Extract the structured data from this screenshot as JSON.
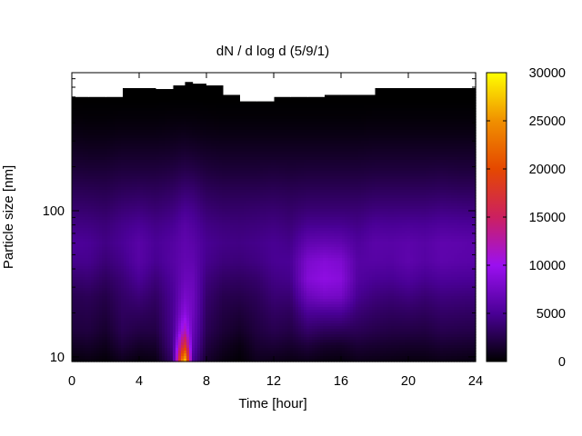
{
  "chart_data": {
    "type": "heatmap",
    "title": "dN / d log d (5/9/1)",
    "xlabel": "Time [hour]",
    "ylabel": "Particle size [nm]",
    "xlim": [
      0,
      24
    ],
    "x_ticks": [
      0,
      4,
      8,
      12,
      16,
      20,
      24
    ],
    "y_scale": "log",
    "ylim_nm": [
      9.3,
      880
    ],
    "y_tick_labels": [
      "10",
      "100"
    ],
    "y_tick_values": [
      10,
      100
    ],
    "colorbar": {
      "range": [
        0,
        30000
      ],
      "ticks": [
        0,
        5000,
        10000,
        15000,
        20000,
        25000,
        30000
      ],
      "palette": "black-purple-red-orange-yellow"
    },
    "colormap_stops": [
      {
        "value": 0,
        "color": "#000000"
      },
      {
        "value": 5000,
        "color": "#4a0096"
      },
      {
        "value": 10000,
        "color": "#9b10f0"
      },
      {
        "value": 15000,
        "color": "#cc2060"
      },
      {
        "value": 20000,
        "color": "#e54800"
      },
      {
        "value": 25000,
        "color": "#f09000"
      },
      {
        "value": 30000,
        "color": "#ffff00"
      }
    ],
    "size_bins_nm": [
      9.5,
      12,
      15,
      20,
      26,
      34,
      45,
      60,
      80,
      105,
      140,
      185,
      245,
      330,
      440,
      590
    ],
    "columns": [
      {
        "t": 0,
        "top_nm": 600,
        "n": [
          400,
          1200,
          2000,
          2400,
          2700,
          3600,
          4700,
          5200,
          4400,
          3600,
          2800,
          2000,
          1300,
          700,
          250,
          0
        ]
      },
      {
        "t": 1,
        "top_nm": 600,
        "n": [
          600,
          1400,
          2100,
          2500,
          2900,
          3800,
          4700,
          5000,
          4300,
          3500,
          2700,
          1900,
          1200,
          600,
          200,
          0
        ]
      },
      {
        "t": 2,
        "top_nm": 600,
        "n": [
          300,
          900,
          1500,
          2000,
          2400,
          3100,
          3900,
          4400,
          4000,
          3300,
          2600,
          1900,
          1200,
          600,
          200,
          0
        ]
      },
      {
        "t": 3,
        "top_nm": 690,
        "n": [
          1000,
          2000,
          2700,
          3100,
          3400,
          3900,
          4600,
          5000,
          4600,
          3800,
          2900,
          2100,
          1400,
          700,
          250,
          0
        ]
      },
      {
        "t": 4,
        "top_nm": 690,
        "n": [
          500,
          1400,
          2300,
          3100,
          4000,
          5000,
          5800,
          5900,
          5000,
          4000,
          3000,
          2100,
          1400,
          700,
          250,
          0
        ]
      },
      {
        "t": 5,
        "top_nm": 680,
        "n": [
          700,
          1500,
          2300,
          2800,
          3300,
          4000,
          4800,
          5000,
          4500,
          3700,
          2900,
          2100,
          1400,
          700,
          250,
          0
        ]
      },
      {
        "t": 6,
        "top_nm": 720,
        "n": [
          3500,
          4500,
          4800,
          4900,
          5000,
          5300,
          5700,
          5600,
          4900,
          4100,
          3200,
          2300,
          1500,
          800,
          300,
          0
        ]
      },
      {
        "t": 6.7,
        "top_nm": 760,
        "n": [
          28000,
          18000,
          12000,
          9000,
          7800,
          7000,
          6500,
          6300,
          5800,
          4800,
          3700,
          2600,
          1700,
          900,
          300,
          0
        ]
      },
      {
        "t": 7.2,
        "top_nm": 740,
        "n": [
          5000,
          6200,
          6800,
          7200,
          7200,
          6900,
          6400,
          6000,
          5400,
          4600,
          3600,
          2500,
          1600,
          800,
          300,
          0
        ]
      },
      {
        "t": 8,
        "top_nm": 720,
        "n": [
          1500,
          2200,
          2800,
          3200,
          3600,
          4100,
          4700,
          4900,
          4400,
          3700,
          2900,
          2100,
          1400,
          700,
          250,
          0
        ]
      },
      {
        "t": 9,
        "top_nm": 620,
        "n": [
          600,
          1200,
          1800,
          2200,
          2600,
          3300,
          4100,
          4500,
          4100,
          3400,
          2700,
          1900,
          1300,
          650,
          200,
          0
        ]
      },
      {
        "t": 10,
        "top_nm": 560,
        "n": [
          200,
          600,
          1300,
          1900,
          2500,
          3200,
          4000,
          4400,
          4000,
          3400,
          2700,
          1900,
          1300,
          650,
          200,
          0
        ]
      },
      {
        "t": 11,
        "top_nm": 560,
        "n": [
          1000,
          1600,
          2100,
          2500,
          2900,
          3500,
          4300,
          4600,
          4100,
          3500,
          2700,
          1900,
          1300,
          650,
          200,
          0
        ]
      },
      {
        "t": 12,
        "top_nm": 600,
        "n": [
          900,
          1800,
          2600,
          3200,
          3800,
          4400,
          4900,
          4900,
          4300,
          3600,
          2800,
          2000,
          1300,
          650,
          200,
          0
        ]
      },
      {
        "t": 13,
        "top_nm": 600,
        "n": [
          700,
          1500,
          2300,
          3000,
          3800,
          4600,
          5000,
          4600,
          4000,
          3400,
          2700,
          1900,
          1300,
          650,
          200,
          0
        ]
      },
      {
        "t": 14,
        "top_nm": 600,
        "n": [
          900,
          2000,
          3400,
          5000,
          7000,
          8500,
          8000,
          6400,
          4800,
          3700,
          2800,
          2000,
          1300,
          650,
          200,
          0
        ]
      },
      {
        "t": 15,
        "top_nm": 620,
        "n": [
          600,
          1500,
          3000,
          5000,
          7800,
          9200,
          8600,
          6600,
          4800,
          3700,
          2800,
          2000,
          1300,
          650,
          200,
          0
        ]
      },
      {
        "t": 16,
        "top_nm": 620,
        "n": [
          500,
          1400,
          2900,
          5000,
          7600,
          8800,
          8200,
          6400,
          4800,
          3700,
          2800,
          2000,
          1300,
          650,
          200,
          0
        ]
      },
      {
        "t": 17,
        "top_nm": 620,
        "n": [
          900,
          1800,
          2800,
          3800,
          4800,
          5500,
          5700,
          5300,
          4500,
          3700,
          2800,
          2000,
          1300,
          650,
          200,
          0
        ]
      },
      {
        "t": 18,
        "top_nm": 690,
        "n": [
          800,
          1600,
          2500,
          3300,
          4100,
          5000,
          5800,
          6000,
          5100,
          4000,
          3000,
          2100,
          1400,
          700,
          250,
          0
        ]
      },
      {
        "t": 19,
        "top_nm": 690,
        "n": [
          700,
          1500,
          2300,
          3100,
          3900,
          4900,
          5700,
          5900,
          5000,
          4000,
          3000,
          2100,
          1400,
          700,
          250,
          0
        ]
      },
      {
        "t": 20,
        "top_nm": 690,
        "n": [
          600,
          1400,
          2300,
          3200,
          4200,
          5300,
          6200,
          6100,
          5100,
          4000,
          3000,
          2100,
          1400,
          700,
          250,
          0
        ]
      },
      {
        "t": 21,
        "top_nm": 690,
        "n": [
          600,
          1400,
          2200,
          3000,
          3800,
          4800,
          5700,
          5800,
          5000,
          4000,
          3000,
          2100,
          1400,
          700,
          250,
          0
        ]
      },
      {
        "t": 22,
        "top_nm": 690,
        "n": [
          800,
          1700,
          2600,
          3400,
          4200,
          5200,
          6200,
          6300,
          5300,
          4200,
          3100,
          2200,
          1400,
          700,
          250,
          0
        ]
      },
      {
        "t": 23,
        "top_nm": 690,
        "n": [
          700,
          1600,
          2500,
          3300,
          4100,
          5100,
          6000,
          6200,
          5200,
          4100,
          3000,
          2100,
          1400,
          700,
          250,
          0
        ]
      },
      {
        "t": 24,
        "top_nm": 690,
        "n": [
          600,
          1500,
          2400,
          3200,
          4000,
          5000,
          5900,
          6000,
          5100,
          4000,
          3000,
          2100,
          1400,
          700,
          250,
          0
        ]
      }
    ]
  }
}
